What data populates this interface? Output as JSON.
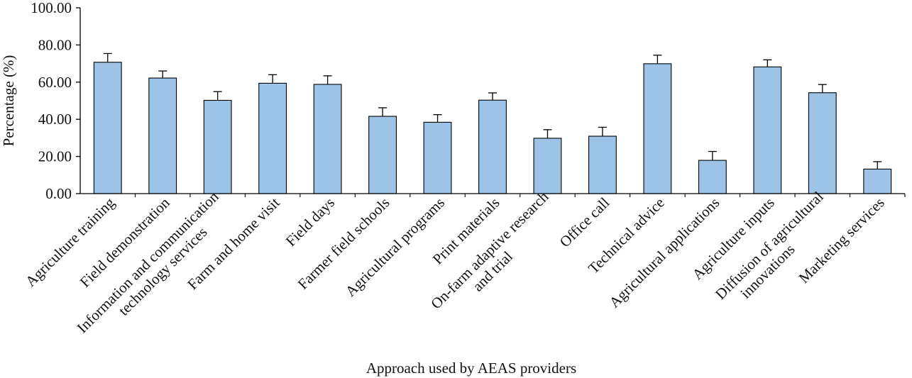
{
  "chart_data": {
    "type": "bar",
    "title": "",
    "xlabel": "Approach used by AEAS providers",
    "ylabel": "Percentage (%)",
    "ylim": [
      0,
      100
    ],
    "yticks": [
      "0.00",
      "20.00",
      "40.00",
      "60.00",
      "80.00",
      "100.00"
    ],
    "grid": false,
    "error_bars": true,
    "bar_color": "#9dc3e6",
    "categories": [
      [
        "Agriculture training"
      ],
      [
        "Field demonstration"
      ],
      [
        "Information and communication",
        "technology services"
      ],
      [
        "Farm and home visit"
      ],
      [
        "Field days"
      ],
      [
        "Farmer field schools"
      ],
      [
        "Agricultural programs"
      ],
      [
        "Print materials"
      ],
      [
        "On-farm adaptive research",
        "and trial"
      ],
      [
        "Office call"
      ],
      [
        "Technical advice"
      ],
      [
        "Agricultural applications"
      ],
      [
        "Agriculture inputs"
      ],
      [
        "Diffusion of agricultural",
        "innovations"
      ],
      [
        "Marketing services"
      ]
    ],
    "values": [
      70.7,
      62.2,
      50.2,
      59.4,
      58.8,
      41.6,
      38.4,
      50.3,
      29.8,
      30.9,
      69.9,
      17.9,
      68.2,
      54.3,
      13.2
    ],
    "errors": [
      4.7,
      3.8,
      4.7,
      4.6,
      4.6,
      4.6,
      4.1,
      3.9,
      4.6,
      4.8,
      4.6,
      4.8,
      3.8,
      4.4,
      4.0
    ]
  }
}
